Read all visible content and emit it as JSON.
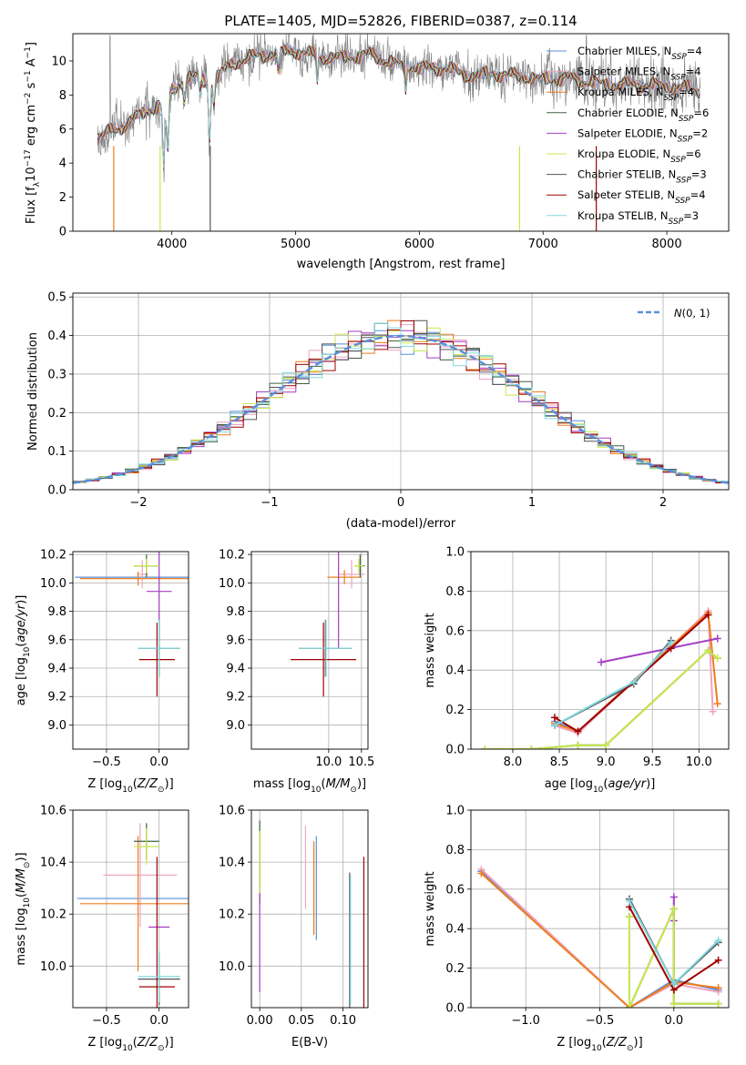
{
  "title": "PLATE=1405, MJD=52826, FIBERID=0387, z=0.114",
  "colors": {
    "Chabrier MILES": "#5b8fd9",
    "Salpeter MILES": "#eda4c2",
    "Kroupa MILES": "#ee7d1d",
    "Chabrier ELODIE": "#3f6040",
    "Salpeter ELODIE": "#a23fc4",
    "Kroupa ELODIE": "#c8e84a",
    "Chabrier STELIB": "#555555",
    "Salpeter STELIB": "#a00000",
    "Kroupa STELIB": "#80d8e0",
    "data": "#808080",
    "gauss": "#5b8fd9"
  },
  "chart_data": [
    {
      "id": "spectrum",
      "type": "line",
      "xlabel": "wavelength [Angstrom, rest frame]",
      "ylabel": "Flux [f_λ 10^-17 erg cm^-2 s^-1 A^-1]",
      "xlim": [
        3200,
        8500
      ],
      "ylim": [
        0,
        11.6
      ],
      "xticks": [
        "4000",
        "5000",
        "6000",
        "7000",
        "8000"
      ],
      "yticks": [
        "0",
        "2",
        "4",
        "6",
        "8",
        "10"
      ],
      "legend_position": "top-right",
      "legend": [
        "Chabrier MILES, N_SSP=4",
        "Salpeter MILES, N_SSP=4",
        "Kroupa MILES, N_SSP=4",
        "Chabrier ELODIE, N_SSP=6",
        "Salpeter ELODIE, N_SSP=2",
        "Kroupa ELODIE, N_SSP=6",
        "Chabrier STELIB, N_SSP=3",
        "Salpeter STELIB, N_SSP=4",
        "Kroupa STELIB, N_SSP=3"
      ],
      "continuum": {
        "x": [
          3400,
          3550,
          3700,
          3800,
          3900,
          3950,
          4000,
          4100,
          4200,
          4300,
          4500,
          4700,
          5000,
          5200,
          5400,
          5600,
          5800,
          6000,
          6200,
          6400,
          6600,
          6800,
          7000,
          7200,
          7500,
          7800,
          8000,
          8270
        ],
        "y": [
          5.6,
          5.9,
          6.7,
          7.0,
          7.5,
          6.3,
          8.2,
          8.9,
          9.1,
          8.7,
          9.9,
          10.3,
          10.6,
          10.2,
          10.2,
          10.4,
          9.8,
          9.6,
          9.6,
          9.1,
          9.3,
          9.1,
          8.9,
          9.0,
          8.6,
          8.6,
          8.5,
          8.3
        ]
      }
    },
    {
      "id": "residuals",
      "type": "line",
      "xlabel": "(data-model)/error",
      "ylabel": "Normed distribution",
      "xlim": [
        -2.5,
        2.5
      ],
      "ylim": [
        0,
        0.51
      ],
      "xticks": [
        "-2",
        "-1",
        "0",
        "1",
        "2"
      ],
      "yticks": [
        "0.0",
        "0.1",
        "0.2",
        "0.3",
        "0.4",
        "0.5"
      ],
      "legend": [
        "N(0,1)"
      ],
      "bin_width": 0.1,
      "bins_start": -2.5
    },
    {
      "id": "age_vs_Z",
      "type": "scatter",
      "xlabel": "Z [log10(Z/Z⊙)]",
      "ylabel": "age [log10(age/yr)]",
      "xlim": [
        -0.82,
        0.28
      ],
      "ylim": [
        8.83,
        10.22
      ],
      "xticks": [
        "-0.5",
        "0.0"
      ],
      "yticks": [
        "9.0",
        "9.2",
        "9.4",
        "9.6",
        "9.8",
        "10.0",
        "10.2"
      ],
      "points": [
        {
          "model": "Chabrier MILES",
          "x": -0.2,
          "y": 10.04,
          "xerr": 0.6,
          "yerr": 0.0
        },
        {
          "model": "Salpeter MILES",
          "x": -0.16,
          "y": 10.06,
          "xerr": 0.05,
          "yerr": 0.1
        },
        {
          "model": "Kroupa MILES",
          "x": -0.2,
          "y": 10.03,
          "xerr": 0.55,
          "yerr": 0.05
        },
        {
          "model": "Chabrier ELODIE",
          "x": -0.12,
          "y": 10.12,
          "xerr": 0.12,
          "yerr": 0.08
        },
        {
          "model": "Salpeter ELODIE",
          "x": 0.0,
          "y": 9.94,
          "xerr": 0.12,
          "yerr": 0.4
        },
        {
          "model": "Kroupa ELODIE",
          "x": -0.12,
          "y": 10.12,
          "xerr": 0.12,
          "yerr": 0.05
        },
        {
          "model": "Chabrier STELIB",
          "x": 0.0,
          "y": 9.54,
          "xerr": 0.2,
          "yerr": 0.2
        },
        {
          "model": "Salpeter STELIB",
          "x": -0.02,
          "y": 9.46,
          "xerr": 0.17,
          "yerr": 0.26
        },
        {
          "model": "Kroupa STELIB",
          "x": 0.0,
          "y": 9.54,
          "xerr": 0.2,
          "yerr": 0.2
        }
      ]
    },
    {
      "id": "age_vs_mass",
      "type": "scatter",
      "xlabel": "mass [log10(M/M⊙)]",
      "ylabel": "",
      "xlim": [
        8.82,
        10.6
      ],
      "ylim": [
        8.83,
        10.22
      ],
      "xticks": [
        "10.0",
        "10.5"
      ],
      "yticks": [
        "9.0",
        "9.2",
        "9.4",
        "9.6",
        "9.8",
        "10.0",
        "10.2"
      ],
      "points": [
        {
          "model": "Chabrier MILES",
          "x": 10.26,
          "y": 10.04,
          "xerr": 0.0,
          "yerr": 0.0
        },
        {
          "model": "Salpeter MILES",
          "x": 10.35,
          "y": 10.06,
          "xerr": 0.2,
          "yerr": 0.1
        },
        {
          "model": "Kroupa MILES",
          "x": 10.24,
          "y": 10.04,
          "xerr": 0.26,
          "yerr": 0.05
        },
        {
          "model": "Chabrier ELODIE",
          "x": 10.48,
          "y": 10.12,
          "xerr": 0.07,
          "yerr": 0.08
        },
        {
          "model": "Salpeter ELODIE",
          "x": 10.15,
          "y": 9.94,
          "xerr": 0.0,
          "yerr": 0.4
        },
        {
          "model": "Kroupa ELODIE",
          "x": 10.46,
          "y": 10.12,
          "xerr": 0.07,
          "yerr": 0.05
        },
        {
          "model": "Chabrier STELIB",
          "x": 9.95,
          "y": 9.54,
          "xerr": 0.4,
          "yerr": 0.2
        },
        {
          "model": "Salpeter STELIB",
          "x": 9.92,
          "y": 9.46,
          "xerr": 0.5,
          "yerr": 0.26
        },
        {
          "model": "Kroupa STELIB",
          "x": 9.96,
          "y": 9.54,
          "xerr": 0.4,
          "yerr": 0.2
        }
      ]
    },
    {
      "id": "weight_vs_age",
      "type": "line",
      "xlabel": "age [log10(age/yr)]",
      "ylabel": "mass weight",
      "xlim": [
        7.55,
        10.32
      ],
      "ylim": [
        0,
        1
      ],
      "xticks": [
        "8.0",
        "8.5",
        "9.0",
        "9.5",
        "10.0"
      ],
      "yticks": [
        "0.0",
        "0.2",
        "0.4",
        "0.6",
        "0.8",
        "1.0"
      ],
      "series": [
        {
          "model": "Chabrier MILES",
          "x": [
            8.45,
            8.7,
            9.7,
            10.1
          ],
          "y": [
            0.14,
            0.09,
            0.52,
            0.69
          ]
        },
        {
          "model": "Salpeter MILES",
          "x": [
            8.45,
            8.7,
            9.7,
            10.1,
            10.15
          ],
          "y": [
            0.12,
            0.08,
            0.52,
            0.7,
            0.19
          ]
        },
        {
          "model": "Kroupa MILES",
          "x": [
            8.45,
            8.7,
            9.7,
            10.1,
            10.2
          ],
          "y": [
            0.13,
            0.09,
            0.52,
            0.69,
            0.23
          ]
        },
        {
          "model": "Chabrier ELODIE",
          "x": [
            7.7,
            8.2,
            8.7,
            9.0,
            10.1,
            10.2
          ],
          "y": [
            0.0,
            0.0,
            0.02,
            0.02,
            0.5,
            0.46
          ]
        },
        {
          "model": "Salpeter ELODIE",
          "x": [
            8.95,
            10.2
          ],
          "y": [
            0.44,
            0.56
          ]
        },
        {
          "model": "Kroupa ELODIE",
          "x": [
            7.7,
            8.2,
            8.7,
            9.0,
            10.1,
            10.2
          ],
          "y": [
            0.0,
            0.0,
            0.02,
            0.02,
            0.5,
            0.46
          ]
        },
        {
          "model": "Chabrier STELIB",
          "x": [
            8.45,
            9.3,
            9.7
          ],
          "y": [
            0.12,
            0.33,
            0.55
          ]
        },
        {
          "model": "Salpeter STELIB",
          "x": [
            8.45,
            8.7,
            9.7,
            10.1
          ],
          "y": [
            0.16,
            0.09,
            0.51,
            0.68
          ]
        },
        {
          "model": "Kroupa STELIB",
          "x": [
            8.45,
            9.3,
            9.7
          ],
          "y": [
            0.12,
            0.34,
            0.54
          ]
        }
      ]
    },
    {
      "id": "mass_vs_Z",
      "type": "scatter",
      "xlabel": "Z [log10(Z/Z⊙)]",
      "ylabel": "mass [log10(M/M⊙)]",
      "xlim": [
        -0.82,
        0.28
      ],
      "ylim": [
        9.84,
        10.6
      ],
      "xticks": [
        "-0.5",
        "0.0"
      ],
      "yticks": [
        "10.0",
        "10.2",
        "10.4",
        "10.6"
      ],
      "points": [
        {
          "model": "Chabrier MILES",
          "x": -0.2,
          "y": 10.26,
          "xerr": 0.58,
          "yerr": 0.0
        },
        {
          "model": "Salpeter MILES",
          "x": -0.18,
          "y": 10.35,
          "xerr": 0.35,
          "yerr": 0.2
        },
        {
          "model": "Kroupa MILES",
          "x": -0.2,
          "y": 10.24,
          "xerr": 0.55,
          "yerr": 0.26
        },
        {
          "model": "Chabrier ELODIE",
          "x": -0.12,
          "y": 10.48,
          "xerr": 0.12,
          "yerr": 0.07
        },
        {
          "model": "Salpeter ELODIE",
          "x": 0.0,
          "y": 10.15,
          "xerr": 0.1,
          "yerr": 0.0
        },
        {
          "model": "Kroupa ELODIE",
          "x": -0.12,
          "y": 10.46,
          "xerr": 0.12,
          "yerr": 0.07
        },
        {
          "model": "Chabrier STELIB",
          "x": 0.0,
          "y": 9.95,
          "xerr": 0.2,
          "yerr": 0.1
        },
        {
          "model": "Salpeter STELIB",
          "x": -0.02,
          "y": 9.92,
          "xerr": 0.17,
          "yerr": 0.5
        },
        {
          "model": "Kroupa STELIB",
          "x": 0.0,
          "y": 9.96,
          "xerr": 0.2,
          "yerr": 0.1
        }
      ]
    },
    {
      "id": "mass_vs_EBV",
      "type": "scatter",
      "xlabel": "E(B-V)",
      "ylabel": "",
      "xlim": [
        -0.01,
        0.13
      ],
      "ylim": [
        9.84,
        10.6
      ],
      "xticks": [
        "0.00",
        "0.05",
        "0.10"
      ],
      "yticks": [
        "10.0",
        "10.2",
        "10.4",
        "10.6"
      ],
      "points": [
        {
          "model": "Chabrier MILES",
          "x": 0.068,
          "y": 10.3,
          "xerr": 0.0,
          "yerr": 0.2
        },
        {
          "model": "Salpeter MILES",
          "x": 0.055,
          "y": 10.38,
          "xerr": 0.0,
          "yerr": 0.16
        },
        {
          "model": "Kroupa MILES",
          "x": 0.065,
          "y": 10.3,
          "xerr": 0.0,
          "yerr": 0.18
        },
        {
          "model": "Chabrier ELODIE",
          "x": 0.0,
          "y": 10.4,
          "xerr": 0.0,
          "yerr": 0.16
        },
        {
          "model": "Salpeter ELODIE",
          "x": 0.0,
          "y": 10.15,
          "xerr": 0.0,
          "yerr": 0.25
        },
        {
          "model": "Kroupa ELODIE",
          "x": 0.0,
          "y": 10.4,
          "xerr": 0.0,
          "yerr": 0.12
        },
        {
          "model": "Chabrier STELIB",
          "x": 0.108,
          "y": 10.1,
          "xerr": 0.0,
          "yerr": 0.26
        },
        {
          "model": "Salpeter STELIB",
          "x": 0.125,
          "y": 10.13,
          "xerr": 0.0,
          "yerr": 0.29
        },
        {
          "model": "Kroupa STELIB",
          "x": 0.109,
          "y": 10.1,
          "xerr": 0.0,
          "yerr": 0.25
        }
      ]
    },
    {
      "id": "weight_vs_Z",
      "type": "line",
      "xlabel": "Z [log10(Z/Z⊙)]",
      "ylabel": "mass weight",
      "xlim": [
        -1.37,
        0.37
      ],
      "ylim": [
        0,
        1
      ],
      "xticks": [
        "-1.0",
        "-0.5",
        "0.0"
      ],
      "yticks": [
        "0.0",
        "0.2",
        "0.4",
        "0.6",
        "0.8",
        "1.0"
      ],
      "series": [
        {
          "model": "Chabrier MILES",
          "x": [
            -1.3,
            -0.3,
            0.0,
            0.3
          ],
          "y": [
            0.69,
            0.0,
            0.14,
            0.09
          ]
        },
        {
          "model": "Salpeter MILES",
          "x": [
            -1.3,
            -0.3,
            0.0,
            0.3
          ],
          "y": [
            0.7,
            0.0,
            0.12,
            0.08
          ]
        },
        {
          "model": "Kroupa MILES",
          "x": [
            -1.3,
            -0.3,
            0.0,
            0.3
          ],
          "y": [
            0.68,
            0.0,
            0.13,
            0.1
          ]
        },
        {
          "model": "Chabrier ELODIE",
          "x": [
            -0.3,
            -0.3,
            0.0,
            0.0,
            0.3
          ],
          "y": [
            0.46,
            0.0,
            0.5,
            0.02,
            0.02
          ]
        },
        {
          "model": "Salpeter ELODIE",
          "x": [
            0.0,
            0.0
          ],
          "y": [
            0.44,
            0.56
          ]
        },
        {
          "model": "Kroupa ELODIE",
          "x": [
            -0.3,
            -0.3,
            0.0,
            0.0,
            0.3
          ],
          "y": [
            0.46,
            0.0,
            0.5,
            0.02,
            0.02
          ]
        },
        {
          "model": "Chabrier STELIB",
          "x": [
            -0.3,
            0.0,
            0.3
          ],
          "y": [
            0.55,
            0.12,
            0.33
          ]
        },
        {
          "model": "Salpeter STELIB",
          "x": [
            -0.3,
            0.0,
            0.3
          ],
          "y": [
            0.51,
            0.09,
            0.24
          ]
        },
        {
          "model": "Kroupa STELIB",
          "x": [
            -0.3,
            0.0,
            0.3
          ],
          "y": [
            0.54,
            0.12,
            0.34
          ]
        }
      ]
    }
  ]
}
